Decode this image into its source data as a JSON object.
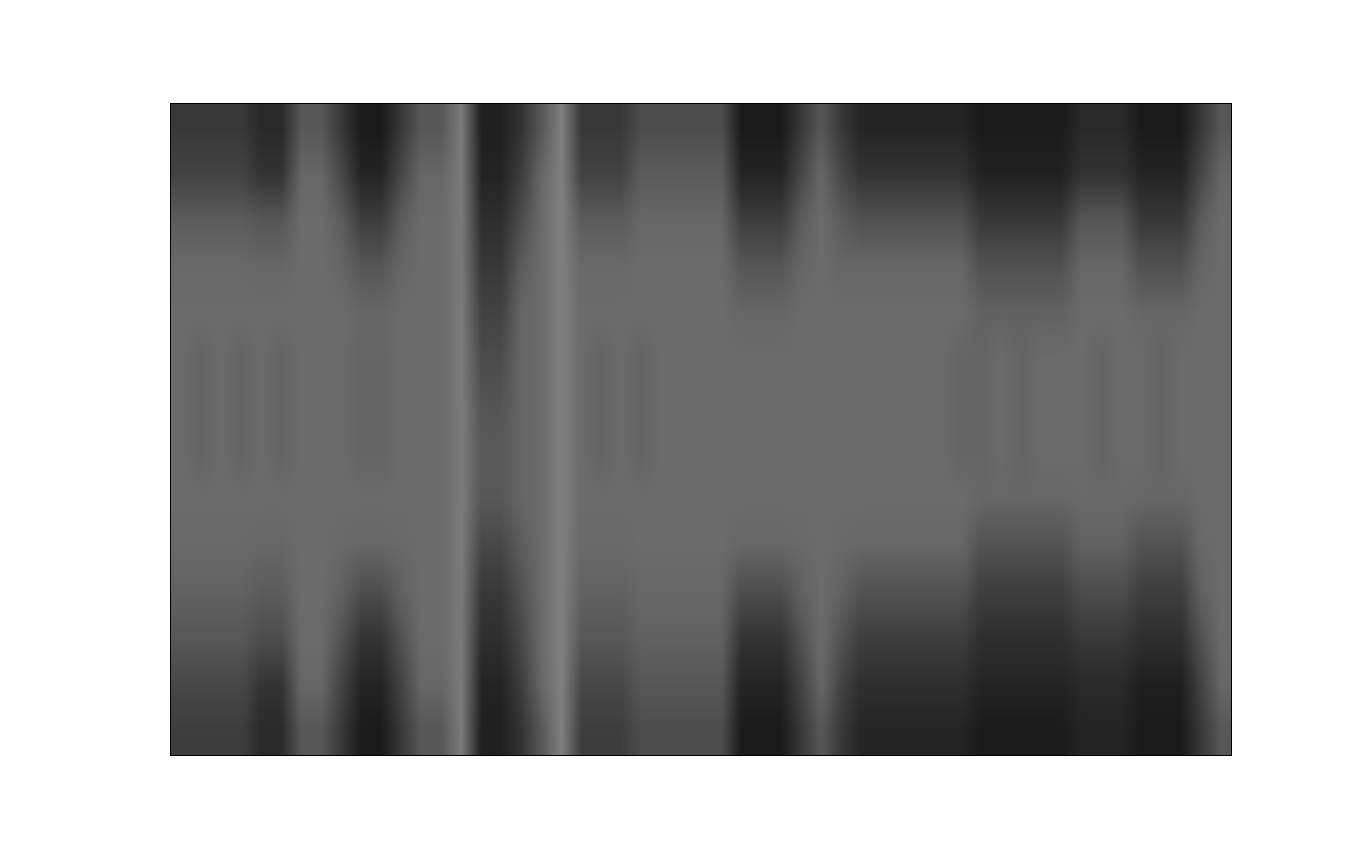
{
  "chart_data": {
    "type": "heatmap",
    "color": "gray",
    "tick_labels": false,
    "xlim": [
      0,
      53
    ],
    "ylim": [
      14,
      0
    ],
    "xticks": [],
    "yticks": [],
    "zlim": [
      0,
      100
    ],
    "cells": [
      [
        22,
        22,
        22,
        22,
        16,
        16,
        34,
        34,
        22,
        10,
        10,
        22,
        34,
        34,
        48,
        12,
        12,
        20,
        34,
        50,
        22,
        22,
        22,
        30,
        30,
        30,
        30,
        30,
        10,
        10,
        10,
        22,
        34,
        22,
        14,
        14,
        14,
        14,
        14,
        14,
        10,
        10,
        10,
        10,
        10,
        16,
        16,
        16,
        10,
        10,
        10,
        22,
        34
      ],
      [
        26,
        26,
        26,
        26,
        20,
        20,
        40,
        40,
        28,
        14,
        14,
        28,
        40,
        40,
        48,
        14,
        14,
        24,
        40,
        50,
        26,
        26,
        26,
        36,
        36,
        36,
        36,
        36,
        14,
        14,
        14,
        28,
        40,
        28,
        20,
        20,
        20,
        20,
        20,
        20,
        13,
        13,
        13,
        13,
        13,
        20,
        20,
        20,
        14,
        14,
        14,
        28,
        40
      ],
      [
        36,
        36,
        36,
        36,
        34,
        34,
        42,
        42,
        36,
        24,
        24,
        36,
        42,
        42,
        48,
        18,
        18,
        30,
        42,
        50,
        36,
        36,
        36,
        40,
        40,
        40,
        40,
        40,
        24,
        24,
        24,
        36,
        42,
        36,
        32,
        32,
        32,
        32,
        32,
        32,
        22,
        22,
        22,
        22,
        22,
        34,
        34,
        34,
        22,
        22,
        22,
        36,
        42
      ],
      [
        41,
        41,
        41,
        41,
        40,
        40,
        42,
        42,
        40,
        34,
        34,
        40,
        42,
        42,
        48,
        22,
        22,
        36,
        42,
        50,
        41,
        41,
        41,
        42,
        42,
        42,
        42,
        42,
        34,
        34,
        34,
        40,
        42,
        40,
        40,
        40,
        40,
        40,
        40,
        40,
        32,
        32,
        32,
        32,
        32,
        40,
        40,
        40,
        32,
        32,
        32,
        40,
        42
      ],
      [
        42,
        42,
        42,
        42,
        42,
        42,
        42,
        42,
        42,
        40,
        40,
        42,
        42,
        42,
        48,
        26,
        26,
        40,
        42,
        50,
        42,
        42,
        42,
        42,
        42,
        42,
        42,
        42,
        40,
        40,
        40,
        42,
        42,
        42,
        42,
        42,
        42,
        42,
        42,
        42,
        38,
        38,
        38,
        38,
        38,
        42,
        42,
        42,
        40,
        40,
        40,
        42,
        42
      ],
      [
        42,
        39,
        42,
        39,
        42,
        39,
        42,
        42,
        42,
        39,
        39,
        42,
        42,
        42,
        48,
        30,
        30,
        40,
        42,
        50,
        42,
        39,
        42,
        39,
        42,
        42,
        42,
        42,
        42,
        42,
        42,
        42,
        42,
        42,
        42,
        42,
        42,
        42,
        42,
        39,
        39,
        42,
        39,
        42,
        42,
        42,
        39,
        42,
        42,
        39,
        42,
        42,
        42
      ],
      [
        42,
        39,
        42,
        39,
        42,
        39,
        42,
        42,
        42,
        39,
        39,
        42,
        42,
        42,
        48,
        33,
        33,
        40,
        42,
        50,
        42,
        39,
        42,
        39,
        42,
        42,
        42,
        42,
        42,
        42,
        42,
        42,
        42,
        42,
        42,
        42,
        42,
        42,
        42,
        39,
        39,
        42,
        39,
        42,
        42,
        42,
        39,
        42,
        42,
        39,
        42,
        42,
        42
      ],
      [
        42,
        39,
        42,
        39,
        42,
        39,
        42,
        42,
        42,
        39,
        39,
        42,
        42,
        42,
        48,
        35,
        35,
        40,
        42,
        50,
        42,
        39,
        42,
        39,
        42,
        42,
        42,
        42,
        42,
        42,
        42,
        42,
        42,
        42,
        42,
        42,
        42,
        42,
        42,
        39,
        39,
        42,
        39,
        42,
        42,
        42,
        39,
        42,
        42,
        39,
        42,
        42,
        42
      ],
      [
        42,
        42,
        42,
        42,
        42,
        42,
        42,
        42,
        42,
        42,
        42,
        42,
        42,
        42,
        48,
        34,
        34,
        40,
        42,
        50,
        42,
        42,
        42,
        42,
        42,
        42,
        42,
        42,
        42,
        42,
        42,
        42,
        42,
        42,
        42,
        42,
        42,
        42,
        42,
        42,
        40,
        40,
        40,
        40,
        40,
        41,
        41,
        41,
        40,
        40,
        40,
        42,
        42
      ],
      [
        41,
        41,
        41,
        41,
        40,
        40,
        42,
        42,
        41,
        40,
        40,
        41,
        42,
        42,
        48,
        28,
        28,
        36,
        42,
        50,
        41,
        41,
        41,
        42,
        42,
        42,
        42,
        42,
        40,
        40,
        40,
        41,
        42,
        41,
        40,
        40,
        40,
        40,
        40,
        40,
        32,
        32,
        32,
        32,
        32,
        38,
        38,
        38,
        32,
        32,
        32,
        41,
        42
      ],
      [
        38,
        38,
        38,
        38,
        36,
        36,
        42,
        42,
        38,
        30,
        30,
        38,
        42,
        42,
        48,
        22,
        22,
        32,
        42,
        50,
        38,
        38,
        38,
        40,
        40,
        40,
        40,
        40,
        30,
        30,
        30,
        38,
        42,
        38,
        32,
        32,
        32,
        32,
        32,
        32,
        24,
        24,
        24,
        24,
        24,
        30,
        30,
        30,
        24,
        24,
        24,
        38,
        42
      ],
      [
        34,
        34,
        34,
        34,
        30,
        30,
        42,
        42,
        32,
        20,
        20,
        32,
        42,
        42,
        48,
        18,
        18,
        28,
        42,
        50,
        34,
        34,
        34,
        38,
        38,
        38,
        38,
        38,
        20,
        20,
        20,
        32,
        42,
        32,
        24,
        24,
        24,
        24,
        24,
        24,
        18,
        18,
        18,
        18,
        18,
        22,
        22,
        22,
        18,
        18,
        18,
        32,
        42
      ],
      [
        28,
        28,
        28,
        28,
        20,
        20,
        40,
        40,
        26,
        14,
        14,
        26,
        40,
        40,
        48,
        14,
        14,
        24,
        40,
        50,
        28,
        28,
        28,
        34,
        34,
        34,
        34,
        34,
        14,
        14,
        14,
        26,
        40,
        26,
        18,
        18,
        18,
        18,
        18,
        18,
        14,
        14,
        14,
        14,
        14,
        16,
        16,
        16,
        12,
        12,
        12,
        26,
        40
      ],
      [
        24,
        24,
        24,
        24,
        16,
        16,
        34,
        34,
        22,
        10,
        10,
        22,
        34,
        34,
        48,
        12,
        12,
        20,
        34,
        50,
        24,
        24,
        24,
        30,
        30,
        30,
        30,
        30,
        10,
        10,
        10,
        22,
        34,
        22,
        14,
        14,
        14,
        14,
        14,
        14,
        10,
        10,
        10,
        10,
        10,
        14,
        14,
        14,
        10,
        10,
        10,
        22,
        34
      ]
    ]
  }
}
